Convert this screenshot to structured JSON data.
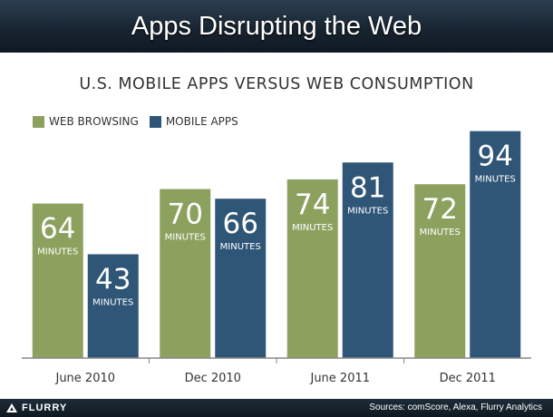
{
  "header": {
    "title": "Apps Disrupting the Web"
  },
  "footer": {
    "brand": "FLURRY",
    "sources": "Sources: comScore, Alexa, Flurry Analytics"
  },
  "chart_data": {
    "type": "bar",
    "title": "U.S. MOBILE APPS VERSUS WEB CONSUMPTION",
    "categories": [
      "June 2010",
      "Dec 2010",
      "June 2011",
      "Dec 2011"
    ],
    "unit_label": "MINUTES",
    "series": [
      {
        "name": "WEB BROWSING",
        "color": "#8da15f",
        "values": [
          64,
          70,
          74,
          72
        ]
      },
      {
        "name": "MOBILE APPS",
        "color": "#2f5577",
        "values": [
          43,
          66,
          81,
          94
        ]
      }
    ],
    "ylim": [
      0,
      104
    ],
    "grid": false,
    "legend": "top-left"
  }
}
